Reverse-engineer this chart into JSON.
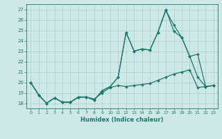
{
  "xlabel": "Humidex (Indice chaleur)",
  "ylabel": "",
  "bg_color": "#cde8e5",
  "grid_color": "#aacfcc",
  "line_color": "#1a7a6e",
  "ylim": [
    17.5,
    27.5
  ],
  "xlim": [
    -0.5,
    23.5
  ],
  "yticks": [
    18,
    19,
    20,
    21,
    22,
    23,
    24,
    25,
    26,
    27
  ],
  "xticks": [
    0,
    1,
    2,
    3,
    4,
    5,
    6,
    7,
    8,
    9,
    10,
    11,
    12,
    13,
    14,
    15,
    16,
    17,
    18,
    19,
    20,
    21,
    22,
    23
  ],
  "series1_x": [
    0,
    1,
    2,
    3,
    4,
    5,
    6,
    7,
    8,
    9,
    10,
    11,
    12,
    13,
    14,
    15,
    16,
    17,
    18,
    19,
    20,
    21,
    22,
    23
  ],
  "series1_y": [
    20.0,
    18.8,
    18.0,
    18.5,
    18.1,
    18.1,
    18.6,
    18.6,
    18.3,
    19.2,
    19.6,
    20.5,
    24.8,
    23.0,
    23.2,
    23.1,
    24.8,
    27.0,
    24.9,
    24.3,
    22.5,
    20.5,
    19.6,
    19.7
  ],
  "series2_x": [
    0,
    1,
    2,
    3,
    4,
    5,
    6,
    7,
    8,
    9,
    10,
    11,
    12,
    13,
    14,
    15,
    16,
    17,
    18,
    19,
    20,
    21,
    22,
    23
  ],
  "series2_y": [
    20.0,
    18.8,
    18.0,
    18.5,
    18.1,
    18.1,
    18.6,
    18.6,
    18.3,
    19.2,
    19.6,
    20.5,
    24.8,
    23.0,
    23.2,
    23.1,
    24.8,
    26.9,
    25.5,
    24.3,
    22.5,
    22.7,
    19.6,
    19.7
  ],
  "series3_x": [
    0,
    1,
    2,
    3,
    4,
    5,
    6,
    7,
    8,
    9,
    10,
    11,
    12,
    13,
    14,
    15,
    16,
    17,
    18,
    19,
    20,
    21,
    22,
    23
  ],
  "series3_y": [
    20.0,
    18.8,
    18.0,
    18.5,
    18.1,
    18.1,
    18.55,
    18.6,
    18.4,
    19.0,
    19.5,
    19.7,
    19.6,
    19.7,
    19.8,
    19.9,
    20.2,
    20.5,
    20.8,
    21.0,
    21.2,
    19.5,
    19.6,
    19.7
  ]
}
